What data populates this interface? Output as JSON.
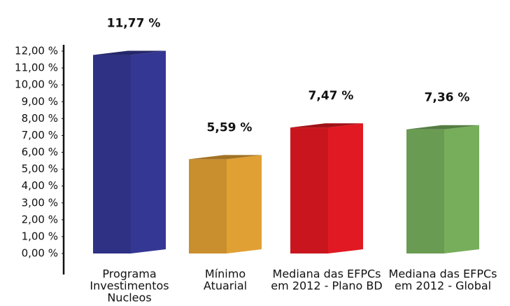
{
  "chart_data": {
    "type": "bar3d",
    "categories": [
      [
        "Programa",
        "Investimentos",
        "Nucleos"
      ],
      [
        "Mínimo",
        "Atuarial"
      ],
      [
        "Mediana das EFPCs",
        "em 2012 - Plano BD"
      ],
      [
        "Mediana das EFPCs",
        "em 2012 - Global"
      ]
    ],
    "values": [
      11.77,
      5.59,
      7.47,
      7.36
    ],
    "value_labels": [
      "11,77 %",
      "5,59 %",
      "7,47 %",
      "7,36 %"
    ],
    "colors": [
      "#2e3184",
      "#c98f2e",
      "#c9161e",
      "#6a9b52"
    ],
    "ylim": [
      0,
      12
    ],
    "yticks": [
      {
        "value": 0,
        "label": "0,00 %"
      },
      {
        "value": 1,
        "label": "1,00 %"
      },
      {
        "value": 2,
        "label": "2,00 %"
      },
      {
        "value": 3,
        "label": "3,00 %"
      },
      {
        "value": 4,
        "label": "4,00 %"
      },
      {
        "value": 5,
        "label": "5,00 %"
      },
      {
        "value": 6,
        "label": "6,00 %"
      },
      {
        "value": 7,
        "label": "7,00 %"
      },
      {
        "value": 8,
        "label": "8,00 %"
      },
      {
        "value": 9,
        "label": "9,00 %"
      },
      {
        "value": 10,
        "label": "10,00 %"
      },
      {
        "value": 11,
        "label": "11,00 %"
      },
      {
        "value": 12,
        "label": "12,00 %"
      }
    ]
  }
}
